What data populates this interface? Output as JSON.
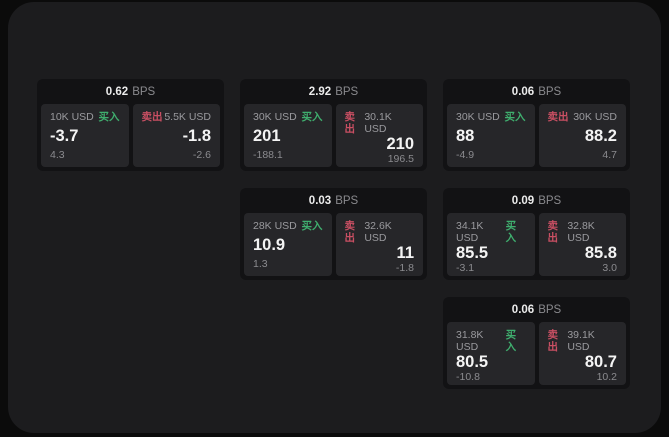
{
  "page": {
    "background": "#0b0b0b",
    "panel_background": "#1c1c1e",
    "card_background": "#121214",
    "pane_background": "#262629"
  },
  "labels": {
    "bps": "BPS",
    "buy": "买入",
    "sell": "卖出"
  },
  "colors": {
    "buy_green": "#3fae6e",
    "sell_red": "#c94f63",
    "value_white": "#f4f4f4",
    "muted_gray": "#9a9a9e"
  },
  "cards": [
    {
      "bps": "0.62",
      "buy": {
        "amount": "10K USD",
        "main": "-3.7",
        "sub": "4.3"
      },
      "sell": {
        "amount": "5.5K USD",
        "main": "-1.8",
        "sub": "-2.6"
      }
    },
    {
      "bps": "2.92",
      "buy": {
        "amount": "30K USD",
        "main": "201",
        "sub": "-188.1"
      },
      "sell": {
        "amount": "30.1K USD",
        "main": "210",
        "sub": "196.5"
      }
    },
    {
      "bps": "0.06",
      "buy": {
        "amount": "30K USD",
        "main": "88",
        "sub": "-4.9"
      },
      "sell": {
        "amount": "30K USD",
        "main": "88.2",
        "sub": "4.7"
      }
    },
    {
      "bps": "0.03",
      "buy": {
        "amount": "28K USD",
        "main": "10.9",
        "sub": "1.3"
      },
      "sell": {
        "amount": "32.6K USD",
        "main": "11",
        "sub": "-1.8"
      }
    },
    {
      "bps": "0.09",
      "buy": {
        "amount": "34.1K USD",
        "main": "85.5",
        "sub": "-3.1"
      },
      "sell": {
        "amount": "32.8K USD",
        "main": "85.8",
        "sub": "3.0"
      }
    },
    {
      "bps": "0.06",
      "buy": {
        "amount": "31.8K USD",
        "main": "80.5",
        "sub": "-10.8"
      },
      "sell": {
        "amount": "39.1K USD",
        "main": "80.7",
        "sub": "10.2"
      }
    }
  ]
}
